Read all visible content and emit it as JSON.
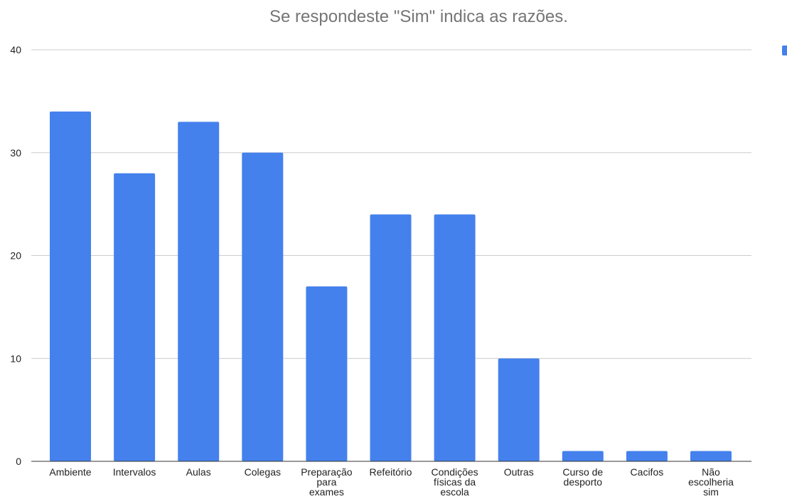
{
  "chart_data": {
    "type": "bar",
    "title": "Se respondeste \"Sim\" indica as razões.",
    "xlabel": "",
    "ylabel": "",
    "ylim": [
      0,
      40
    ],
    "yticks": [
      0,
      10,
      20,
      30,
      40
    ],
    "grid": true,
    "legend_position": "right",
    "bar_color": "#4581ed",
    "categories": [
      [
        "Ambiente"
      ],
      [
        "Intervalos"
      ],
      [
        "Aulas"
      ],
      [
        "Colegas"
      ],
      [
        "Preparação",
        "para",
        "exames"
      ],
      [
        "Refeitório"
      ],
      [
        "Condições",
        "físicas da",
        "escola"
      ],
      [
        "Outras"
      ],
      [
        "Curso de",
        "desporto"
      ],
      [
        "Cacifos"
      ],
      [
        "Não",
        "escolheria",
        "sim"
      ]
    ],
    "values": [
      34,
      28,
      33,
      30,
      17,
      24,
      24,
      10,
      1,
      1,
      1
    ]
  }
}
